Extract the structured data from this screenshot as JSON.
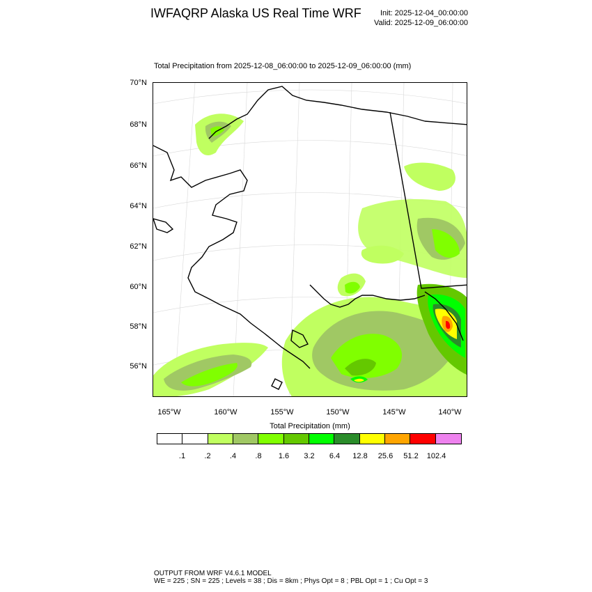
{
  "header": {
    "title": "IWFAQRP Alaska US Real Time WRF",
    "init": "Init: 2025-12-04_00:00:00",
    "valid": "Valid: 2025-12-09_06:00:00"
  },
  "plot": {
    "title": "Total Precipitation from 2025-12-08_06:00:00 to 2025-12-09_06:00:00   (mm)"
  },
  "axes": {
    "lat_labels": [
      "70°N",
      "68°N",
      "66°N",
      "64°N",
      "62°N",
      "60°N",
      "58°N",
      "56°N"
    ],
    "lon_labels": [
      "165°W",
      "160°W",
      "155°W",
      "150°W",
      "145°W",
      "140°W"
    ]
  },
  "colorbar": {
    "title": "Total Precipitation  (mm)",
    "labels": [
      ".1",
      ".2",
      ".4",
      ".8",
      "1.6",
      "3.2",
      "6.4",
      "12.8",
      "25.6",
      "51.2",
      "102.4"
    ],
    "colors": [
      "#ffffff",
      "#ffffff",
      "#c0ff60",
      "#a0c864",
      "#80ff00",
      "#64c800",
      "#00ff00",
      "#2a8c2a",
      "#ffff00",
      "#ffa500",
      "#ff0000",
      "#ee82ee"
    ]
  },
  "footer": {
    "line1": "OUTPUT FROM WRF V4.6.1 MODEL",
    "line2": "WE = 225 ; SN = 225 ; Levels = 38 ; Dis = 8km ; Phys Opt = 8 ; PBL Opt = 1 ; Cu Opt = 3"
  }
}
